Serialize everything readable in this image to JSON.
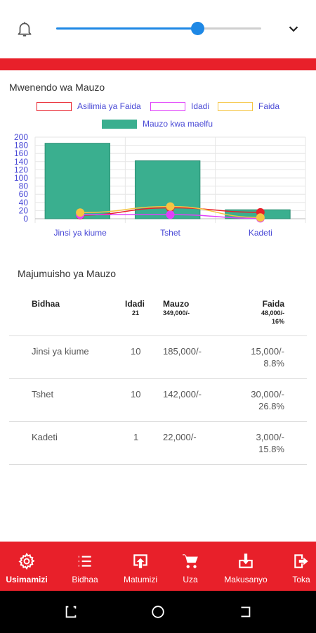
{
  "header": {
    "slider_value_fraction": 0.69,
    "accent": "#e8202a",
    "slider_color": "#1e88e5"
  },
  "chart_section": {
    "title": "Mwenendo wa Mauzo",
    "legend": [
      {
        "label": "Asilimia ya Faida",
        "color": "#e8202a"
      },
      {
        "label": "Idadi",
        "color": "#e040fb"
      },
      {
        "label": "Faida",
        "color": "#f5c542"
      },
      {
        "label": "Mauzo kwa maelfu",
        "color": "#3aaf8f"
      }
    ]
  },
  "chart_data": {
    "type": "bar",
    "categories": [
      "Jinsi ya kiume",
      "Tshet",
      "Kadeti"
    ],
    "series": [
      {
        "name": "Mauzo kwa maelfu",
        "type": "bar",
        "values": [
          185,
          142,
          22
        ],
        "color": "#3aaf8f"
      },
      {
        "name": "Asilimia ya Faida",
        "type": "line",
        "values": [
          8.8,
          26.8,
          15.8
        ],
        "color": "#e8202a"
      },
      {
        "name": "Idadi",
        "type": "line",
        "values": [
          10,
          10,
          1
        ],
        "color": "#e040fb"
      },
      {
        "name": "Faida",
        "type": "line",
        "values": [
          15,
          30,
          3
        ],
        "color": "#f5c542"
      }
    ],
    "yticks": [
      "0",
      "20",
      "40",
      "60",
      "80",
      "100",
      "120",
      "140",
      "160",
      "180",
      "200"
    ],
    "ylim": [
      0,
      200
    ],
    "grid": true,
    "legend_position": "top"
  },
  "summary": {
    "title": "Majumuisho ya Mauzo",
    "headers": {
      "product": "Bidhaa",
      "qty": "Idadi",
      "sales": "Mauzo",
      "profit": "Faida"
    },
    "totals": {
      "qty": "21",
      "sales": "349,000/-",
      "profit_amount": "48,000/-",
      "profit_pct": "16%"
    },
    "rows": [
      {
        "product": "Jinsi ya kiume",
        "qty": "10",
        "sales": "185,000/-",
        "profit_amount": "15,000/-",
        "profit_pct": "8.8%"
      },
      {
        "product": "Tshet",
        "qty": "10",
        "sales": "142,000/-",
        "profit_amount": "30,000/-",
        "profit_pct": "26.8%"
      },
      {
        "product": "Kadeti",
        "qty": "1",
        "sales": "22,000/-",
        "profit_amount": "3,000/-",
        "profit_pct": "15.8%"
      }
    ]
  },
  "bottom_nav": [
    {
      "label": "Usimamizi",
      "icon": "gear-icon",
      "active": true
    },
    {
      "label": "Bidhaa",
      "icon": "list-icon",
      "active": false
    },
    {
      "label": "Matumizi",
      "icon": "upload-icon",
      "active": false
    },
    {
      "label": "Uza",
      "icon": "cart-icon",
      "active": false
    },
    {
      "label": "Makusanyo",
      "icon": "download-icon",
      "active": false
    },
    {
      "label": "Toka",
      "icon": "logout-icon",
      "active": false
    }
  ]
}
